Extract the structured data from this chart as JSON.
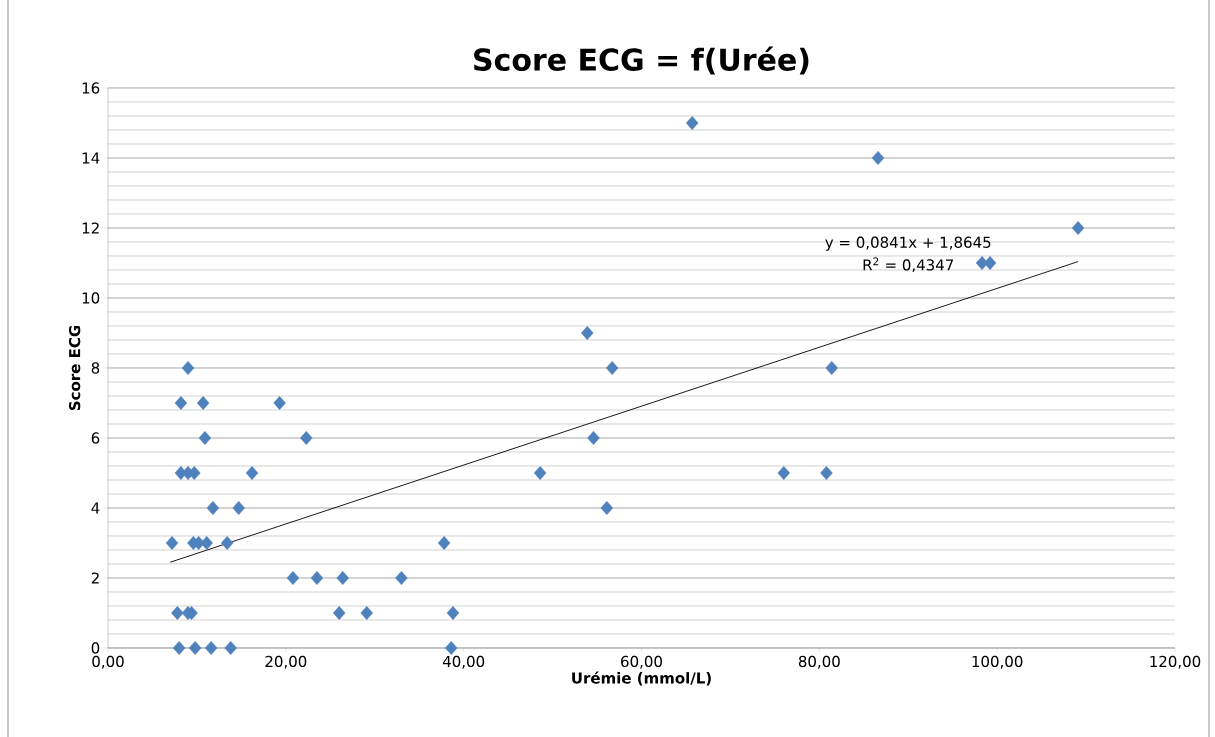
{
  "chart_data": {
    "type": "scatter",
    "title": "Score ECG = f(Urée)",
    "xlabel": "Urémie (mmol/L)",
    "ylabel": "Score ECG",
    "annotations": [
      "y = 0,0841x + 1,8645",
      "R$^{2}$ = 0,4347"
    ],
    "xlim": [
      0,
      120
    ],
    "ylim": [
      0,
      16
    ],
    "xticks": [
      {
        "value": 0,
        "label": "0,00"
      },
      {
        "value": 20,
        "label": "20,00"
      },
      {
        "value": 40,
        "label": "40,00"
      },
      {
        "value": 60,
        "label": "60,00"
      },
      {
        "value": 80,
        "label": "80,00"
      },
      {
        "value": 100,
        "label": "100,00"
      },
      {
        "value": 120,
        "label": "120,00"
      }
    ],
    "yticks": [
      0,
      2,
      4,
      6,
      8,
      10,
      12,
      14,
      16
    ],
    "grid": "y",
    "series": [
      {
        "color": "#4f81bd",
        "marker": "diamond",
        "x": [
          65.7,
          86.6,
          109.1,
          98.3,
          99.2,
          53.9,
          9.0,
          56.7,
          81.4,
          8.2,
          10.7,
          19.3,
          10.9,
          22.3,
          54.6,
          8.2,
          9.0,
          9.7,
          16.2,
          48.6,
          76.0,
          80.8,
          11.8,
          14.7,
          56.1,
          7.2,
          9.6,
          10.2,
          11.1,
          13.4,
          37.8,
          20.8,
          23.5,
          26.4,
          33.0,
          7.8,
          9.0,
          9.4,
          26.0,
          29.1,
          38.8,
          8.0,
          9.8,
          11.6,
          13.8,
          38.6
        ],
        "values": [
          15,
          14,
          12,
          11,
          11,
          9,
          8,
          8,
          8,
          7,
          7,
          7,
          6,
          6,
          6,
          5,
          5,
          5,
          5,
          5,
          5,
          5,
          4,
          4,
          4,
          3,
          3,
          3,
          3,
          3,
          3,
          2,
          2,
          2,
          2,
          1,
          1,
          1,
          1,
          1,
          1,
          0,
          0,
          0,
          0,
          0
        ]
      },
      {
        "type": "line",
        "marker": "none",
        "color": "#000000",
        "x": [
          7.0,
          109.1
        ],
        "values": [
          2.45,
          11.04
        ]
      }
    ]
  }
}
